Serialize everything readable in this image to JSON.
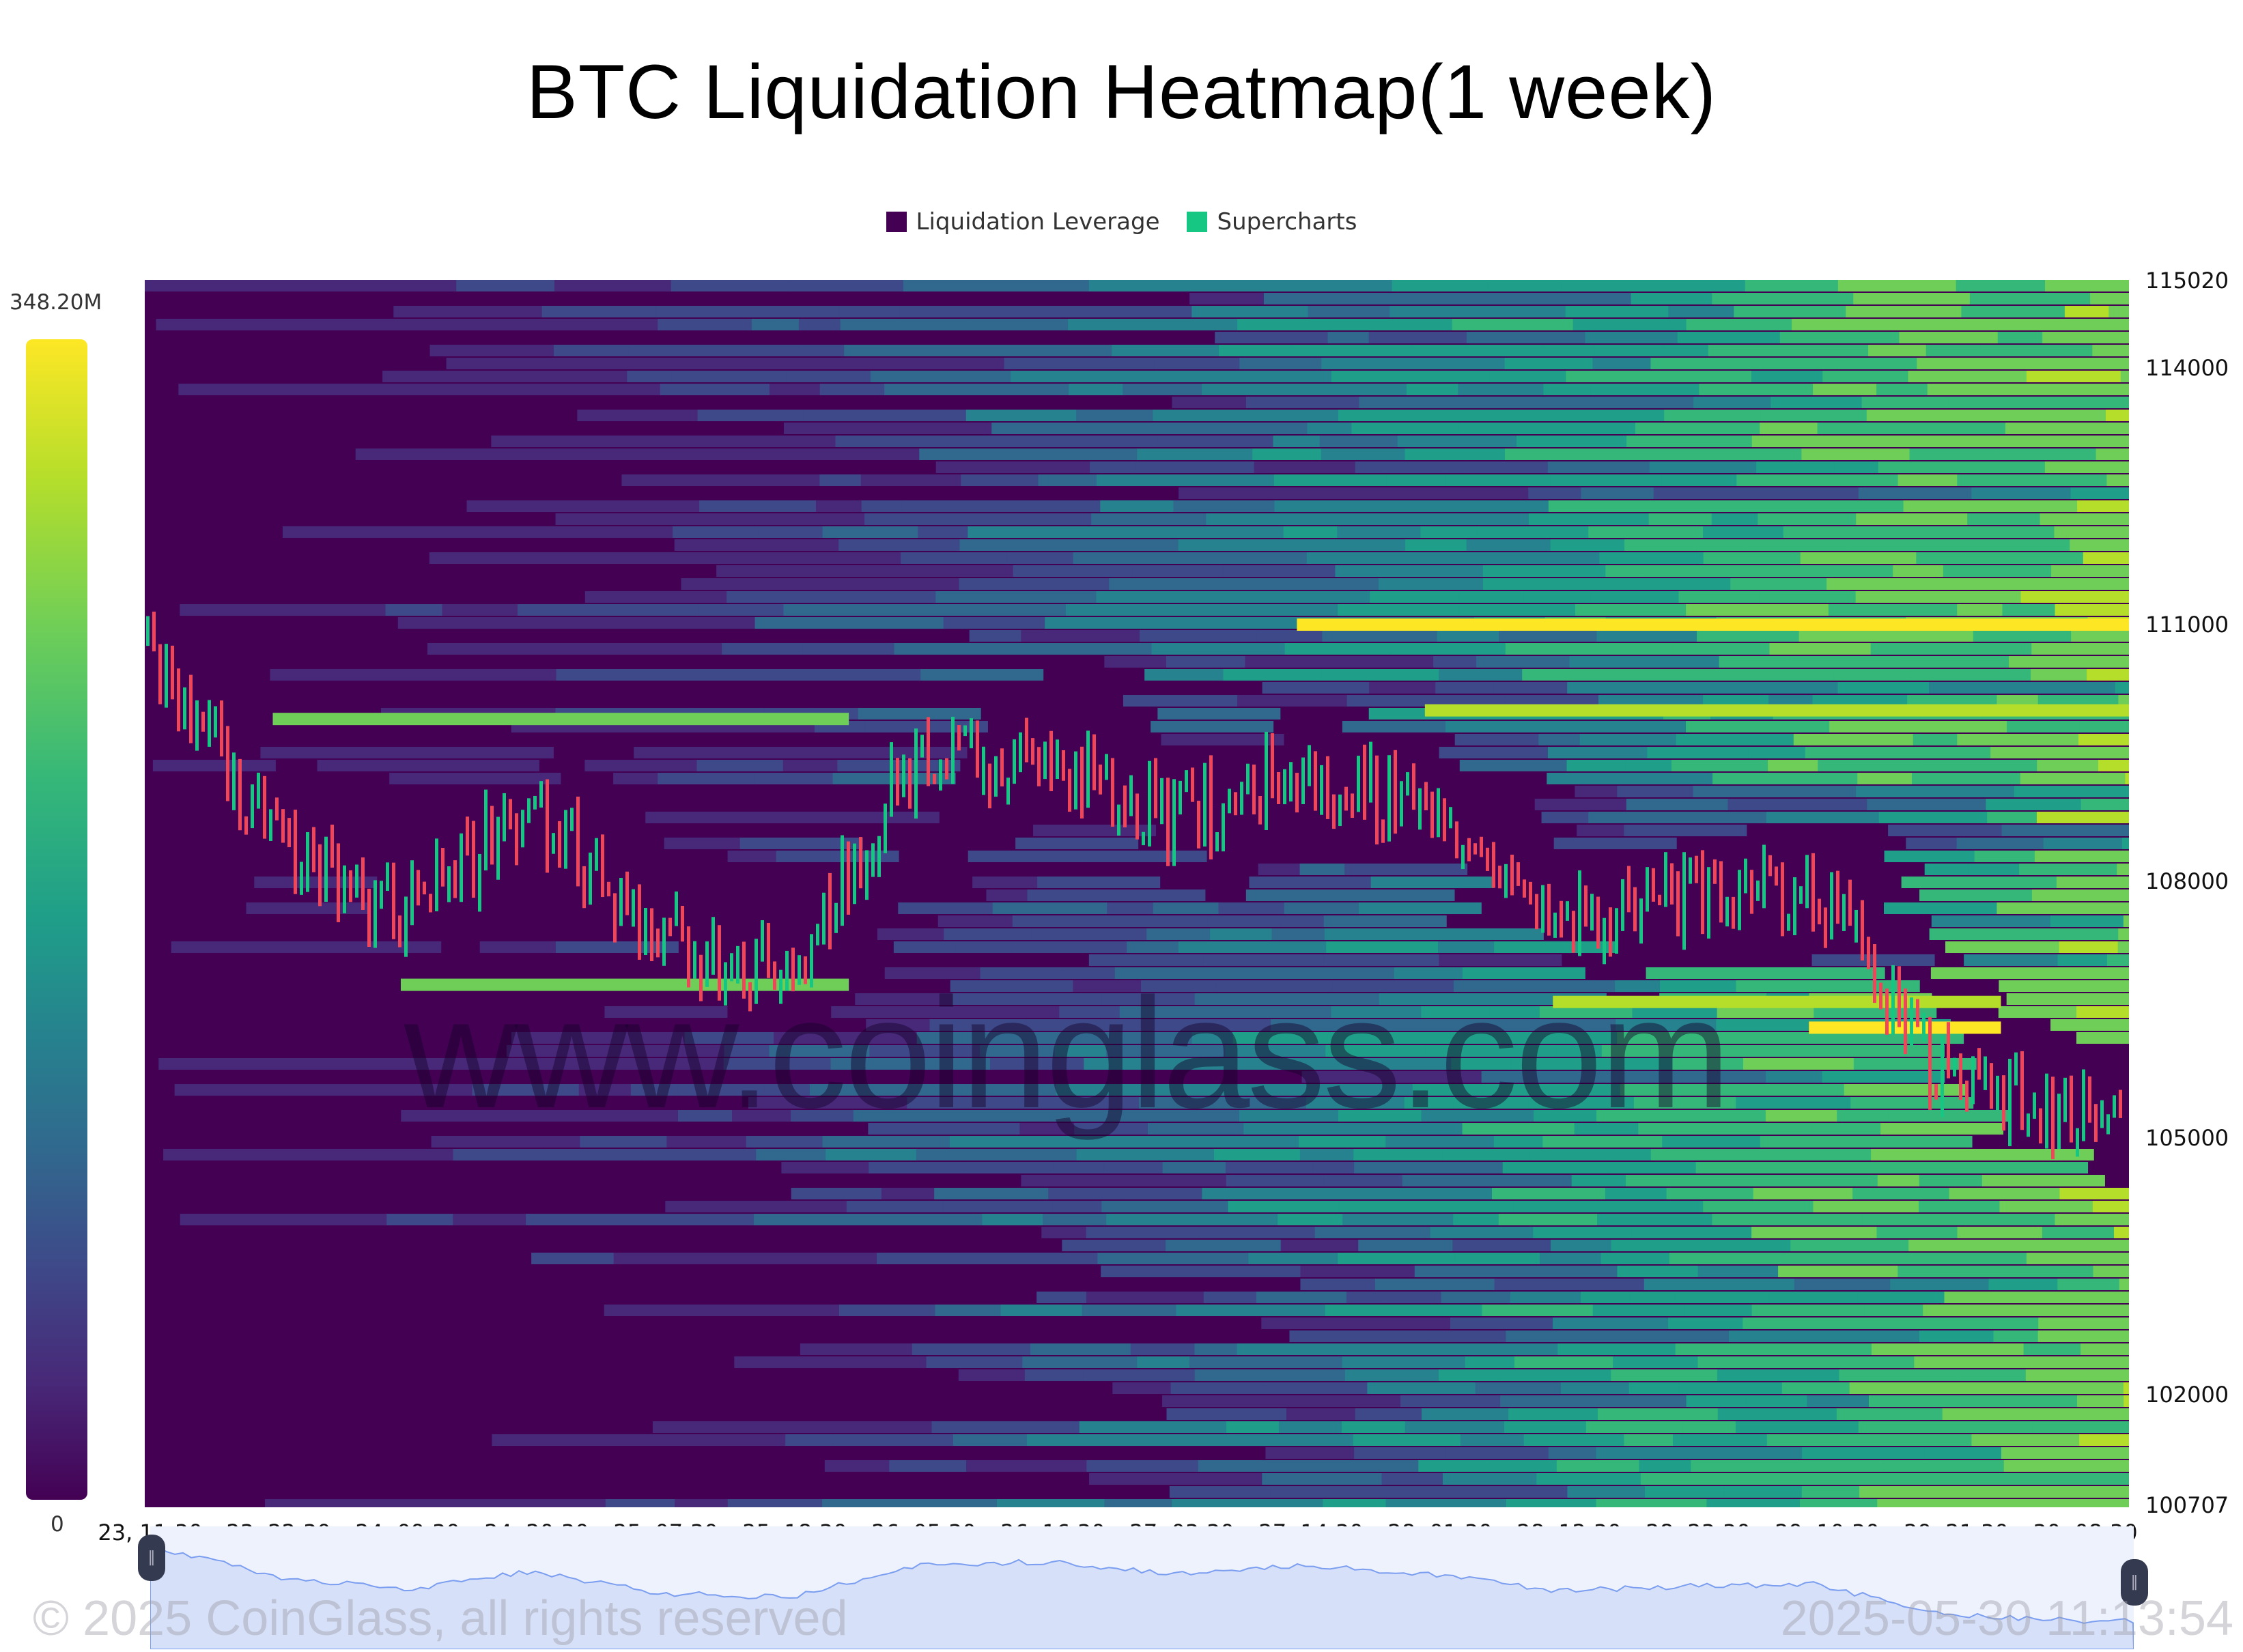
{
  "title": "BTC Liquidation Heatmap(1 week)",
  "legend": {
    "items": [
      {
        "label": "Liquidation Leverage",
        "color": "#440154"
      },
      {
        "label": "Supercharts",
        "color": "#16c784"
      }
    ]
  },
  "colorbar": {
    "max_label": "348.20M",
    "min_label": "0",
    "colorscale": [
      "#440154",
      "#482878",
      "#3e4989",
      "#31688e",
      "#26828e",
      "#1f9e89",
      "#35b779",
      "#6ece58",
      "#b5de2b",
      "#fde725"
    ]
  },
  "watermark": "www.coinglass.com",
  "footer": {
    "copyright": "© 2025 CoinGlass, all rights reserved",
    "timestamp": "2025-05-30 11:13:54"
  },
  "navigator": {
    "left_handle_icon": "pause-grip-icon",
    "right_handle_icon": "pause-grip-icon"
  },
  "chart_data": {
    "type": "heatmap",
    "title": "BTC Liquidation Heatmap(1 week)",
    "xlabel": "",
    "ylabel": "",
    "y_axis": {
      "position": "right",
      "ticks": [
        115020,
        114000,
        111000,
        108000,
        105000,
        102000,
        100707
      ],
      "range": [
        100707,
        115020
      ]
    },
    "x_axis": {
      "ticks": [
        "23, 11:30",
        "23, 22:30",
        "24, 09:30",
        "24, 20:30",
        "25, 07:30",
        "25, 18:30",
        "26, 05:30",
        "26, 16:30",
        "27, 03:30",
        "27, 14:30",
        "28, 01:30",
        "28, 12:30",
        "28, 23:30",
        "29, 10:30",
        "29, 21:30",
        "30, 08:30"
      ]
    },
    "color_range": {
      "min": 0,
      "max": "348.20M"
    },
    "legend": [
      "Liquidation Leverage",
      "Supercharts"
    ],
    "candle_colors": {
      "up": "#16c784",
      "down": "#f0465a"
    },
    "notable_bands": [
      {
        "price": 111000,
        "intensity": "max (yellow)",
        "span": "27, 14:30 → 30, 08:30"
      },
      {
        "price": 110000,
        "intensity": "high (yellow-green)",
        "span": "28, 01:30 → 30, 08:30"
      },
      {
        "price": 109900,
        "intensity": "medium-high (green)",
        "span": "23, 22:30 → 25, 18:30"
      },
      {
        "price": 106600,
        "intensity": "high (yellow-green)",
        "span": "28, 12:30 → 29, 21:30"
      },
      {
        "price": 106300,
        "intensity": "max (yellow)",
        "span": "29, 10:30 → 29, 21:30"
      },
      {
        "price": 106800,
        "intensity": "medium (green)",
        "span": "24, 09:30 → 25, 18:30"
      }
    ],
    "price_series_approx": [
      {
        "t": "23, 11:30",
        "close": 110800
      },
      {
        "t": "23, 22:30",
        "close": 108500
      },
      {
        "t": "24, 09:30",
        "close": 107600
      },
      {
        "t": "24, 20:30",
        "close": 108900
      },
      {
        "t": "25, 07:30",
        "close": 107300
      },
      {
        "t": "25, 18:30",
        "close": 107000
      },
      {
        "t": "26, 05:30",
        "close": 109400
      },
      {
        "t": "26, 16:30",
        "close": 109600
      },
      {
        "t": "27, 03:30",
        "close": 108700
      },
      {
        "t": "27, 14:30",
        "close": 109400
      },
      {
        "t": "28, 01:30",
        "close": 108700
      },
      {
        "t": "28, 12:30",
        "close": 107500
      },
      {
        "t": "28, 23:30",
        "close": 107800
      },
      {
        "t": "29, 10:30",
        "close": 108000
      },
      {
        "t": "29, 21:30",
        "close": 105800
      },
      {
        "t": "30, 08:30",
        "close": 105300
      }
    ]
  }
}
